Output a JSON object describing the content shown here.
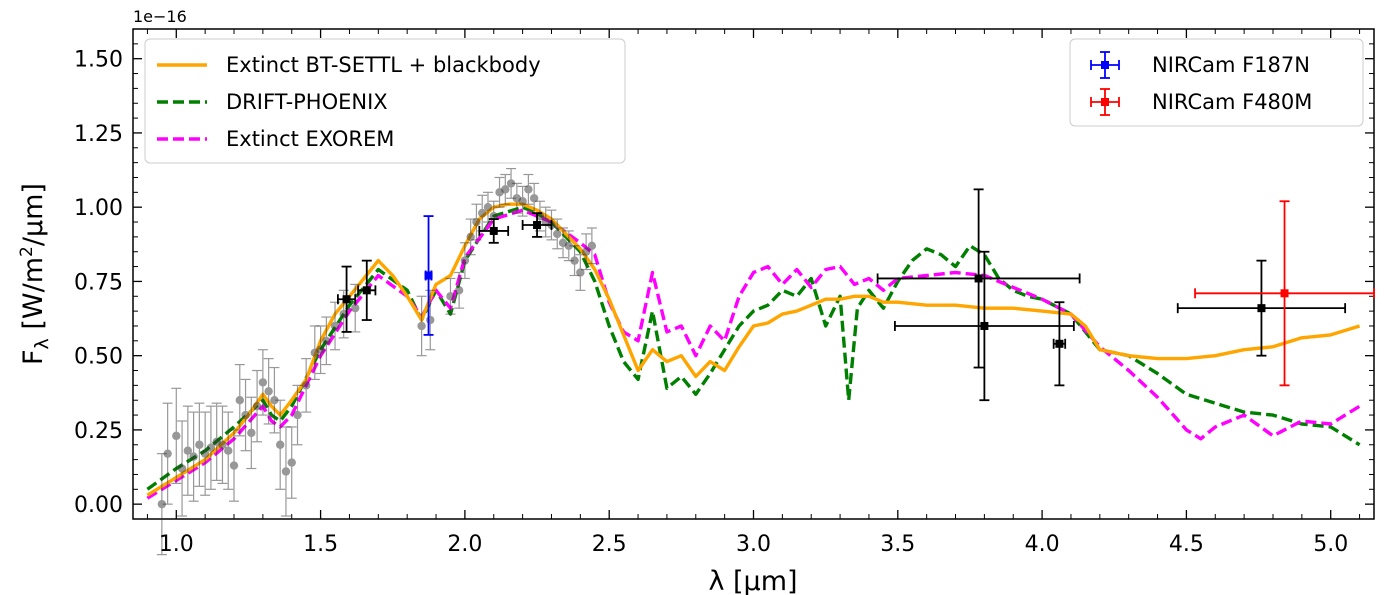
{
  "chart_data": {
    "type": "line",
    "xlabel": "λ [μm]",
    "ylabel": "F_λ [W/m²/μm]",
    "y_offset_label": "1e−16",
    "xlim": [
      0.85,
      5.15
    ],
    "ylim": [
      -0.05,
      1.6
    ],
    "x_ticks": [
      "1.0",
      "1.5",
      "2.0",
      "2.5",
      "3.0",
      "3.5",
      "4.0",
      "4.5",
      "5.0"
    ],
    "y_ticks": [
      "0.00",
      "0.25",
      "0.50",
      "0.75",
      "1.00",
      "1.25",
      "1.50"
    ],
    "legend_left": [
      "Extinct BT-SETTL + blackbody",
      "DRIFT-PHOENIX",
      "Extinct EXOREM"
    ],
    "legend_right": [
      "NIRCam F187N",
      "NIRCam F480M"
    ],
    "colors": {
      "btsettl": "#ffa500",
      "drift": "#008000",
      "exorem": "#ff00ff",
      "f187n": "#0000ff",
      "f480m": "#ff0000",
      "black": "#000000",
      "grey": "#666666"
    },
    "series": [
      {
        "name": "Extinct BT-SETTL + blackbody",
        "style": "solid",
        "x": [
          0.9,
          1.0,
          1.1,
          1.2,
          1.25,
          1.3,
          1.33,
          1.36,
          1.4,
          1.45,
          1.5,
          1.55,
          1.6,
          1.65,
          1.7,
          1.75,
          1.8,
          1.85,
          1.87,
          1.9,
          1.95,
          2.0,
          2.05,
          2.1,
          2.15,
          2.2,
          2.25,
          2.3,
          2.35,
          2.4,
          2.45,
          2.5,
          2.55,
          2.6,
          2.65,
          2.7,
          2.75,
          2.8,
          2.85,
          2.9,
          2.95,
          3.0,
          3.05,
          3.1,
          3.15,
          3.2,
          3.25,
          3.3,
          3.35,
          3.4,
          3.45,
          3.5,
          3.6,
          3.7,
          3.8,
          3.9,
          4.0,
          4.1,
          4.15,
          4.2,
          4.3,
          4.4,
          4.5,
          4.6,
          4.7,
          4.8,
          4.9,
          5.0,
          5.1
        ],
        "y": [
          0.03,
          0.09,
          0.15,
          0.24,
          0.3,
          0.37,
          0.33,
          0.3,
          0.35,
          0.42,
          0.55,
          0.64,
          0.7,
          0.76,
          0.82,
          0.77,
          0.7,
          0.62,
          0.67,
          0.74,
          0.77,
          0.87,
          0.96,
          1.0,
          1.01,
          1.01,
          0.99,
          0.96,
          0.91,
          0.86,
          0.79,
          0.69,
          0.57,
          0.45,
          0.52,
          0.48,
          0.5,
          0.43,
          0.48,
          0.45,
          0.53,
          0.6,
          0.61,
          0.64,
          0.65,
          0.67,
          0.69,
          0.69,
          0.7,
          0.7,
          0.68,
          0.68,
          0.67,
          0.67,
          0.66,
          0.66,
          0.65,
          0.64,
          0.6,
          0.52,
          0.5,
          0.49,
          0.49,
          0.5,
          0.52,
          0.53,
          0.56,
          0.57,
          0.6
        ]
      },
      {
        "name": "DRIFT-PHOENIX",
        "style": "dashed",
        "x": [
          0.9,
          1.0,
          1.1,
          1.2,
          1.3,
          1.33,
          1.36,
          1.4,
          1.5,
          1.6,
          1.7,
          1.8,
          1.85,
          1.9,
          1.95,
          2.0,
          2.1,
          2.2,
          2.25,
          2.3,
          2.4,
          2.45,
          2.5,
          2.55,
          2.6,
          2.65,
          2.7,
          2.75,
          2.8,
          2.85,
          2.9,
          2.95,
          3.0,
          3.05,
          3.1,
          3.15,
          3.2,
          3.25,
          3.3,
          3.33,
          3.36,
          3.4,
          3.45,
          3.5,
          3.55,
          3.6,
          3.65,
          3.7,
          3.75,
          3.8,
          3.85,
          3.9,
          3.95,
          4.0,
          4.1,
          4.2,
          4.3,
          4.4,
          4.5,
          4.6,
          4.7,
          4.8,
          4.9,
          5.0,
          5.1
        ],
        "y": [
          0.05,
          0.12,
          0.18,
          0.26,
          0.35,
          0.3,
          0.28,
          0.33,
          0.52,
          0.67,
          0.79,
          0.72,
          0.62,
          0.72,
          0.64,
          0.82,
          0.97,
          1.0,
          0.98,
          0.95,
          0.85,
          0.75,
          0.6,
          0.48,
          0.42,
          0.65,
          0.39,
          0.43,
          0.37,
          0.44,
          0.52,
          0.6,
          0.65,
          0.67,
          0.72,
          0.7,
          0.76,
          0.6,
          0.7,
          0.35,
          0.66,
          0.72,
          0.66,
          0.75,
          0.82,
          0.86,
          0.84,
          0.8,
          0.87,
          0.84,
          0.76,
          0.72,
          0.7,
          0.69,
          0.64,
          0.52,
          0.5,
          0.44,
          0.37,
          0.34,
          0.31,
          0.3,
          0.27,
          0.26,
          0.2
        ]
      },
      {
        "name": "Extinct EXOREM",
        "style": "dashed",
        "x": [
          0.9,
          1.0,
          1.1,
          1.2,
          1.3,
          1.33,
          1.36,
          1.4,
          1.5,
          1.6,
          1.7,
          1.8,
          1.85,
          1.9,
          1.95,
          2.0,
          2.1,
          2.2,
          2.3,
          2.4,
          2.45,
          2.5,
          2.55,
          2.6,
          2.65,
          2.7,
          2.75,
          2.8,
          2.85,
          2.9,
          2.95,
          3.0,
          3.05,
          3.1,
          3.15,
          3.2,
          3.25,
          3.3,
          3.35,
          3.4,
          3.45,
          3.5,
          3.6,
          3.7,
          3.8,
          3.9,
          4.0,
          4.1,
          4.2,
          4.3,
          4.4,
          4.5,
          4.55,
          4.6,
          4.7,
          4.8,
          4.9,
          5.0,
          5.1
        ],
        "y": [
          0.02,
          0.08,
          0.14,
          0.22,
          0.33,
          0.28,
          0.26,
          0.3,
          0.5,
          0.65,
          0.77,
          0.7,
          0.63,
          0.72,
          0.66,
          0.83,
          0.96,
          0.99,
          0.95,
          0.88,
          0.84,
          0.68,
          0.58,
          0.55,
          0.78,
          0.58,
          0.6,
          0.5,
          0.6,
          0.55,
          0.7,
          0.78,
          0.8,
          0.74,
          0.79,
          0.73,
          0.79,
          0.8,
          0.74,
          0.76,
          0.72,
          0.76,
          0.77,
          0.78,
          0.77,
          0.73,
          0.69,
          0.64,
          0.53,
          0.45,
          0.36,
          0.25,
          0.22,
          0.26,
          0.3,
          0.23,
          0.28,
          0.27,
          0.33
        ]
      }
    ],
    "photometry_black": [
      {
        "x": 1.59,
        "y": 0.69,
        "xerr": 0.03,
        "yerr": 0.11
      },
      {
        "x": 1.66,
        "y": 0.72,
        "xerr": 0.03,
        "yerr": 0.1
      },
      {
        "x": 2.1,
        "y": 0.92,
        "xerr": 0.05,
        "yerr": 0.04
      },
      {
        "x": 2.25,
        "y": 0.94,
        "xerr": 0.05,
        "yerr": 0.04
      },
      {
        "x": 3.78,
        "y": 0.76,
        "xerr": 0.35,
        "yerr": 0.3
      },
      {
        "x": 3.8,
        "y": 0.6,
        "xerr": 0.31,
        "yerr": 0.25
      },
      {
        "x": 4.06,
        "y": 0.54,
        "xerr": 0.02,
        "yerr": 0.14
      },
      {
        "x": 4.76,
        "y": 0.66,
        "xerr": 0.29,
        "yerr": 0.16
      }
    ],
    "photometry_f187n": [
      {
        "x": 1.874,
        "y": 0.77,
        "xerr": 0.01,
        "yerr": 0.2
      }
    ],
    "photometry_f480m": [
      {
        "x": 4.84,
        "y": 0.71,
        "xerr": 0.31,
        "yerr": 0.31
      }
    ],
    "spectrum_points": {
      "x": [
        0.95,
        0.97,
        1.0,
        1.02,
        1.04,
        1.06,
        1.08,
        1.1,
        1.12,
        1.14,
        1.16,
        1.18,
        1.2,
        1.22,
        1.24,
        1.26,
        1.28,
        1.3,
        1.32,
        1.34,
        1.36,
        1.38,
        1.4,
        1.42,
        1.45,
        1.48,
        1.5,
        1.52,
        1.55,
        1.58,
        1.62,
        1.85,
        1.88,
        1.95,
        1.98,
        2.0,
        2.02,
        2.04,
        2.06,
        2.08,
        2.1,
        2.12,
        2.14,
        2.16,
        2.18,
        2.2,
        2.22,
        2.24,
        2.26,
        2.28,
        2.3,
        2.32,
        2.34,
        2.36,
        2.38,
        2.4,
        2.42,
        2.44
      ],
      "y": [
        0.0,
        0.17,
        0.23,
        0.12,
        0.18,
        0.16,
        0.2,
        0.17,
        0.19,
        0.21,
        0.2,
        0.18,
        0.13,
        0.35,
        0.3,
        0.24,
        0.33,
        0.41,
        0.38,
        0.35,
        0.2,
        0.11,
        0.14,
        0.3,
        0.4,
        0.51,
        0.52,
        0.55,
        0.6,
        0.64,
        0.66,
        0.6,
        0.62,
        0.7,
        0.72,
        0.82,
        0.9,
        0.95,
        0.98,
        1.0,
        0.97,
        1.05,
        1.06,
        1.08,
        1.03,
        1.02,
        1.06,
        1.03,
        0.97,
        0.95,
        0.94,
        0.91,
        0.88,
        0.87,
        0.82,
        0.78,
        0.85,
        0.87
      ],
      "yerr": [
        0.17,
        0.17,
        0.16,
        0.16,
        0.15,
        0.15,
        0.14,
        0.14,
        0.14,
        0.13,
        0.13,
        0.13,
        0.12,
        0.12,
        0.12,
        0.12,
        0.12,
        0.11,
        0.11,
        0.11,
        0.15,
        0.15,
        0.12,
        0.1,
        0.09,
        0.09,
        0.08,
        0.08,
        0.08,
        0.08,
        0.08,
        0.1,
        0.1,
        0.06,
        0.06,
        0.06,
        0.06,
        0.06,
        0.06,
        0.05,
        0.05,
        0.05,
        0.05,
        0.05,
        0.05,
        0.05,
        0.05,
        0.05,
        0.05,
        0.05,
        0.05,
        0.05,
        0.05,
        0.05,
        0.05,
        0.06,
        0.06,
        0.06
      ]
    }
  }
}
